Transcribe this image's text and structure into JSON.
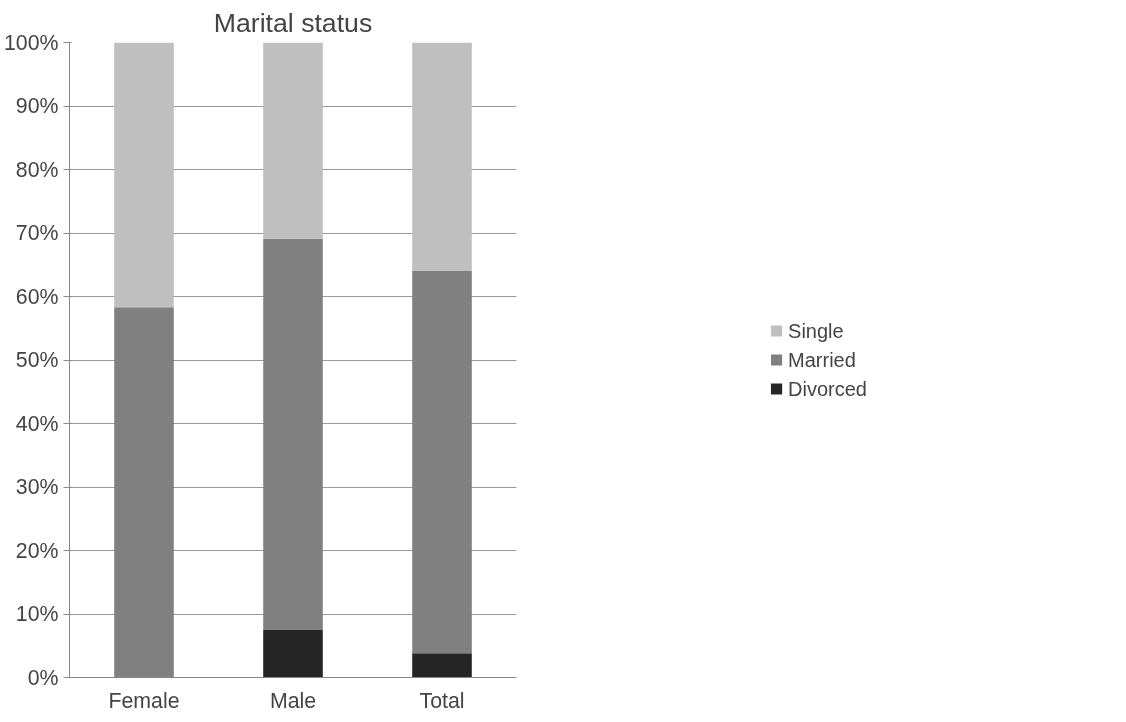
{
  "chart_data": {
    "type": "bar",
    "title": "Marital status",
    "stacked": true,
    "categories": [
      "Female",
      "Male",
      "Total"
    ],
    "series": [
      {
        "name": "Divorced",
        "color": "#262626",
        "values": [
          0,
          7.5,
          3.8
        ]
      },
      {
        "name": "Married",
        "color": "#808080",
        "values": [
          58.3,
          61.6,
          60.2
        ]
      },
      {
        "name": "Single",
        "color": "#bfbfbf",
        "values": [
          41.7,
          30.9,
          36.0
        ]
      }
    ],
    "ylim": [
      0,
      100
    ],
    "yticks": [
      {
        "value": 0,
        "label": "0%"
      },
      {
        "value": 10,
        "label": "10%"
      },
      {
        "value": 20,
        "label": "20%"
      },
      {
        "value": 30,
        "label": "30%"
      },
      {
        "value": 40,
        "label": "40%"
      },
      {
        "value": 50,
        "label": "50%"
      },
      {
        "value": 60,
        "label": "60%"
      },
      {
        "value": 70,
        "label": "70%"
      },
      {
        "value": 80,
        "label": "80%"
      },
      {
        "value": 90,
        "label": "90%"
      },
      {
        "value": 100,
        "label": "100%"
      }
    ],
    "grid": "y",
    "legend": "right"
  }
}
